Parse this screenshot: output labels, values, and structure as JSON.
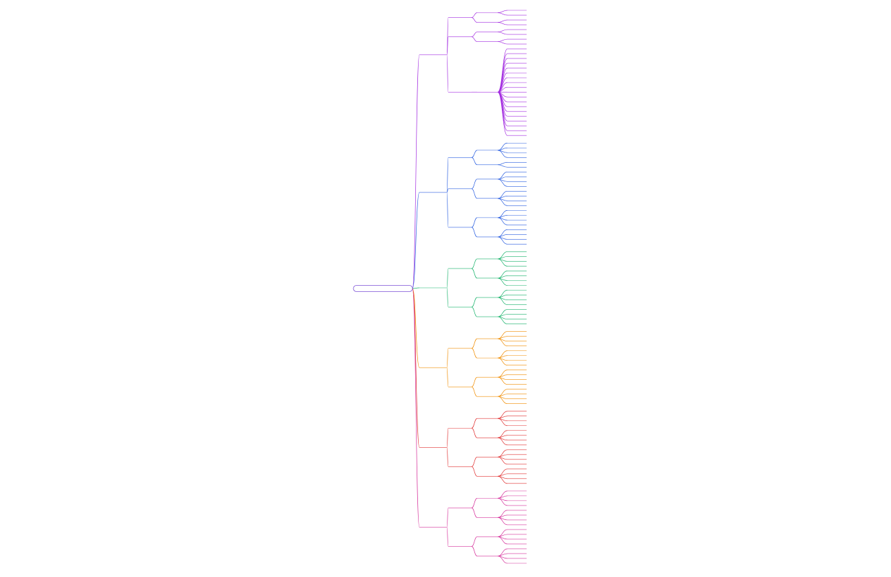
{
  "root": "",
  "branches": [
    {
      "name": "",
      "color": "#a22be0",
      "groups": [
        {
          "name": "",
          "subs": [
            {
              "name": "",
              "leaves": [
                "",
                ""
              ]
            },
            {
              "name": "",
              "leaves": [
                "",
                ""
              ]
            }
          ]
        },
        {
          "name": "",
          "subs": [
            {
              "name": "",
              "leaves": [
                "",
                ""
              ]
            },
            {
              "name": "",
              "leaves": [
                "",
                ""
              ]
            }
          ]
        },
        {
          "name": "",
          "subs": [
            {
              "name": "",
              "leaves": [
                "",
                "",
                "",
                "",
                "",
                "",
                "",
                "",
                "",
                "",
                "",
                "",
                "",
                "",
                "",
                "",
                "",
                "",
                ""
              ]
            }
          ]
        }
      ]
    },
    {
      "name": "",
      "color": "#2b5fe0",
      "groups": [
        {
          "name": "",
          "subs": [
            {
              "name": "",
              "leaves": [
                "",
                "",
                "",
                ""
              ]
            },
            {
              "name": "",
              "leaves": [
                "",
                ""
              ]
            }
          ]
        },
        {
          "name": "",
          "subs": [
            {
              "name": "",
              "leaves": [
                "",
                "",
                "",
                ""
              ]
            },
            {
              "name": "",
              "leaves": [
                "",
                "",
                "",
                ""
              ]
            }
          ]
        },
        {
          "name": "",
          "subs": [
            {
              "name": "",
              "leaves": [
                "",
                "",
                "",
                ""
              ]
            },
            {
              "name": "",
              "leaves": [
                "",
                "",
                "",
                ""
              ]
            }
          ]
        }
      ]
    },
    {
      "name": "",
      "color": "#17b26a",
      "groups": [
        {
          "name": "",
          "subs": [
            {
              "name": "",
              "leaves": [
                "",
                "",
                "",
                ""
              ]
            },
            {
              "name": "",
              "leaves": [
                "",
                "",
                "",
                ""
              ]
            }
          ]
        },
        {
          "name": "",
          "subs": [
            {
              "name": "",
              "leaves": [
                "",
                "",
                "",
                ""
              ]
            },
            {
              "name": "",
              "leaves": [
                "",
                "",
                "",
                ""
              ]
            }
          ]
        }
      ]
    },
    {
      "name": "",
      "color": "#f08c00",
      "groups": [
        {
          "name": "",
          "subs": [
            {
              "name": "",
              "leaves": [
                "",
                "",
                "",
                ""
              ]
            },
            {
              "name": "",
              "leaves": [
                "",
                "",
                "",
                ""
              ]
            }
          ]
        },
        {
          "name": "",
          "subs": [
            {
              "name": "",
              "leaves": [
                "",
                "",
                "",
                ""
              ]
            },
            {
              "name": "",
              "leaves": [
                "",
                "",
                "",
                ""
              ]
            }
          ]
        }
      ]
    },
    {
      "name": "",
      "color": "#e03131",
      "groups": [
        {
          "name": "",
          "subs": [
            {
              "name": "",
              "leaves": [
                "",
                "",
                "",
                ""
              ]
            },
            {
              "name": "",
              "leaves": [
                "",
                "",
                "",
                ""
              ]
            }
          ]
        },
        {
          "name": "",
          "subs": [
            {
              "name": "",
              "leaves": [
                "",
                "",
                "",
                ""
              ]
            },
            {
              "name": "",
              "leaves": [
                "",
                "",
                "",
                ""
              ]
            }
          ]
        }
      ]
    },
    {
      "name": "",
      "color": "#d6339c",
      "groups": [
        {
          "name": "",
          "subs": [
            {
              "name": "",
              "leaves": [
                "",
                "",
                "",
                ""
              ]
            },
            {
              "name": "",
              "leaves": [
                "",
                "",
                "",
                ""
              ]
            }
          ]
        },
        {
          "name": "",
          "subs": [
            {
              "name": "",
              "leaves": [
                "",
                "",
                "",
                ""
              ]
            },
            {
              "name": "",
              "leaves": [
                "",
                "",
                "",
                ""
              ]
            }
          ]
        }
      ]
    }
  ]
}
